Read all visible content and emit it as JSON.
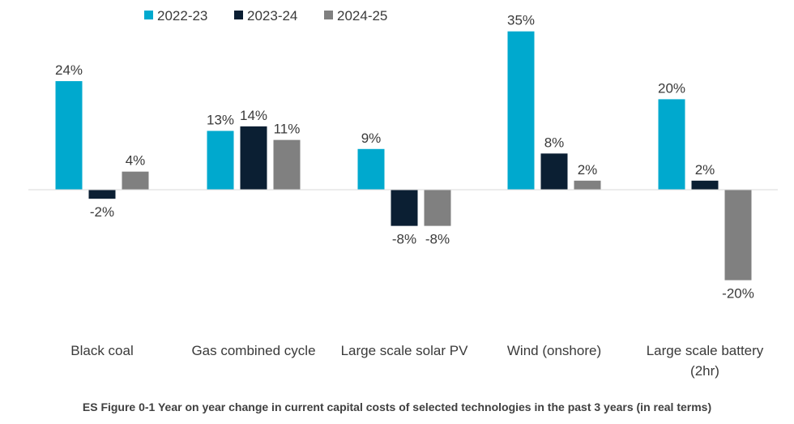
{
  "chart_data": {
    "type": "bar",
    "title": "",
    "xlabel": "",
    "ylabel": "",
    "categories": [
      "Black coal",
      "Gas combined cycle",
      "Large scale solar PV",
      "Wind (onshore)",
      "Large scale battery (2hr)"
    ],
    "series": [
      {
        "name": "2022-23",
        "color": "#00a9ce",
        "values": [
          24,
          13,
          9,
          35,
          20
        ]
      },
      {
        "name": "2023-24",
        "color": "#0b1f33",
        "values": [
          -2,
          14,
          -8,
          8,
          2
        ]
      },
      {
        "name": "2024-25",
        "color": "#808080",
        "values": [
          4,
          11,
          -8,
          2,
          -20
        ]
      }
    ],
    "data_labels": [
      [
        "24%",
        "13%",
        "9%",
        "35%",
        "20%"
      ],
      [
        "-2%",
        "14%",
        "-8%",
        "8%",
        "2%"
      ],
      [
        "4%",
        "11%",
        "-8%",
        "2%",
        "-20%"
      ]
    ],
    "ylim": [
      -20,
      35
    ],
    "grid": false,
    "legend": "top-left"
  },
  "category_lines": [
    [
      "Black coal"
    ],
    [
      "Gas combined cycle"
    ],
    [
      "Large scale solar PV"
    ],
    [
      "Wind (onshore)"
    ],
    [
      "Large scale battery",
      "(2hr)"
    ]
  ],
  "caption": "ES Figure 0-1 Year on year change in current capital costs of selected technologies in the past 3 years (in real terms)"
}
